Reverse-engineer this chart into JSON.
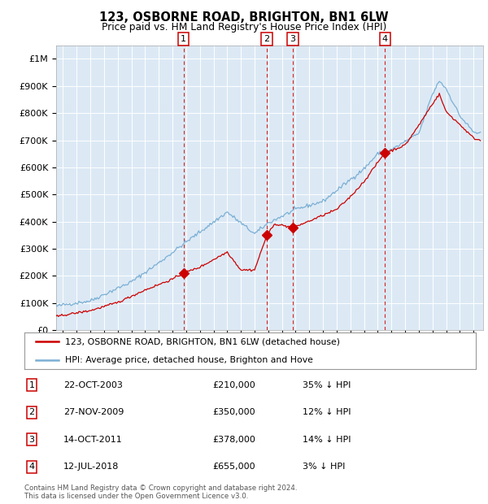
{
  "title": "123, OSBORNE ROAD, BRIGHTON, BN1 6LW",
  "subtitle": "Price paid vs. HM Land Registry's House Price Index (HPI)",
  "background_color": "#dce9f5",
  "plot_bg": "#dce9f5",
  "sale_dates": [
    2003.81,
    2009.9,
    2011.79,
    2018.53
  ],
  "sale_prices": [
    210000,
    350000,
    378000,
    655000
  ],
  "sale_labels": [
    "1",
    "2",
    "3",
    "4"
  ],
  "vline_x": [
    2003.81,
    2009.9,
    2011.79,
    2018.53
  ],
  "ylim": [
    0,
    1050000
  ],
  "xlim_start": 1994.5,
  "xlim_end": 2025.7,
  "legend_entries": [
    "123, OSBORNE ROAD, BRIGHTON, BN1 6LW (detached house)",
    "HPI: Average price, detached house, Brighton and Hove"
  ],
  "table_rows": [
    [
      "1",
      "22-OCT-2003",
      "£210,000",
      "35% ↓ HPI"
    ],
    [
      "2",
      "27-NOV-2009",
      "£350,000",
      "12% ↓ HPI"
    ],
    [
      "3",
      "14-OCT-2011",
      "£378,000",
      "14% ↓ HPI"
    ],
    [
      "4",
      "12-JUL-2018",
      "£655,000",
      "3% ↓ HPI"
    ]
  ],
  "footer": "Contains HM Land Registry data © Crown copyright and database right 2024.\nThis data is licensed under the Open Government Licence v3.0.",
  "red_line_color": "#cc0000",
  "blue_line_color": "#7bafd4",
  "vline_color": "#cc0000",
  "marker_color": "#cc0000",
  "box_edge_color": "#cc0000",
  "yticks": [
    0,
    100000,
    200000,
    300000,
    400000,
    500000,
    600000,
    700000,
    800000,
    900000,
    1000000
  ],
  "ytick_labels": [
    "£0",
    "£100K",
    "£200K",
    "£300K",
    "£400K",
    "£500K",
    "£600K",
    "£700K",
    "£800K",
    "£900K",
    "£1M"
  ],
  "xticks": [
    1995,
    1996,
    1997,
    1998,
    1999,
    2000,
    2001,
    2002,
    2003,
    2004,
    2005,
    2006,
    2007,
    2008,
    2009,
    2010,
    2011,
    2012,
    2013,
    2014,
    2015,
    2016,
    2017,
    2018,
    2019,
    2020,
    2021,
    2022,
    2023,
    2024,
    2025
  ]
}
